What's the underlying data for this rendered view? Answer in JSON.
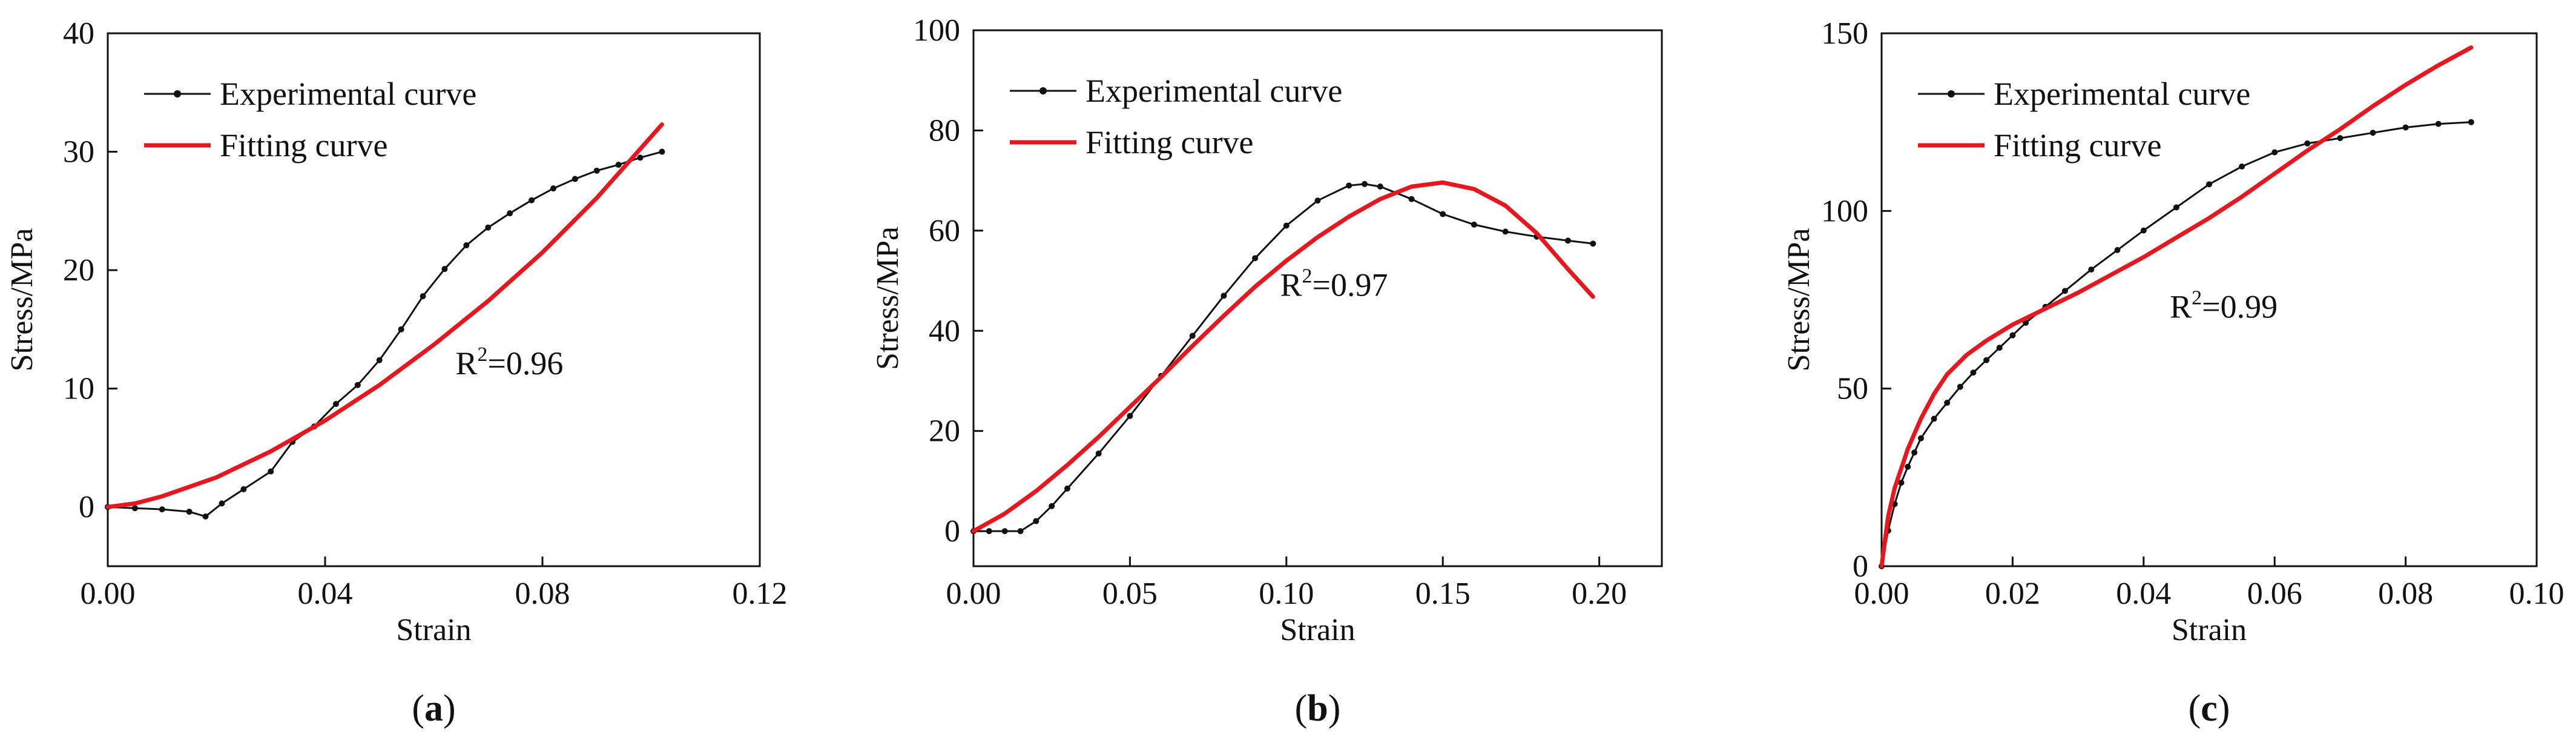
{
  "colors": {
    "experimental": "#111111",
    "fitting": "#e8161e",
    "axis": "#111111"
  },
  "chart_data": [
    {
      "id": "a",
      "type": "line",
      "panel_label": "(a)",
      "panel_letter": "a",
      "xlabel": "Strain",
      "ylabel": "Stress/MPa",
      "xlim": [
        0,
        0.12
      ],
      "ylim": [
        -5,
        40
      ],
      "xticks": [
        0,
        0.04,
        0.08,
        0.12
      ],
      "xtick_labels": [
        "0.00",
        "0.04",
        "0.08",
        "0.12"
      ],
      "yticks": [
        0,
        10,
        20,
        30,
        40
      ],
      "ytick_labels": [
        "0",
        "10",
        "20",
        "30",
        "40"
      ],
      "legend": {
        "experimental": "Experimental curve",
        "fitting": "Fitting curve",
        "placement": "top-left"
      },
      "annotation": {
        "base": "R",
        "sup": "2",
        "rest": "=0.96",
        "x": 0.064,
        "y": 11.2
      },
      "series": [
        {
          "name": "Experimental curve",
          "role": "experimental",
          "markers": true,
          "x": [
            0.0,
            0.005,
            0.01,
            0.015,
            0.018,
            0.021,
            0.025,
            0.03,
            0.034,
            0.038,
            0.042,
            0.046,
            0.05,
            0.054,
            0.058,
            0.062,
            0.066,
            0.07,
            0.074,
            0.078,
            0.082,
            0.086,
            0.09,
            0.094,
            0.098,
            0.102
          ],
          "y": [
            0.0,
            -0.1,
            -0.2,
            -0.4,
            -0.8,
            0.3,
            1.5,
            3.0,
            5.5,
            6.8,
            8.7,
            10.3,
            12.4,
            15.0,
            17.8,
            20.1,
            22.1,
            23.6,
            24.8,
            25.9,
            26.9,
            27.7,
            28.4,
            28.9,
            29.5,
            30.0
          ]
        },
        {
          "name": "Fitting curve",
          "role": "fitting",
          "markers": false,
          "x": [
            0.0,
            0.005,
            0.01,
            0.02,
            0.03,
            0.04,
            0.05,
            0.06,
            0.07,
            0.08,
            0.09,
            0.102
          ],
          "y": [
            0.0,
            0.3,
            0.9,
            2.5,
            4.7,
            7.3,
            10.3,
            13.7,
            17.4,
            21.5,
            26.1,
            32.3
          ]
        }
      ]
    },
    {
      "id": "b",
      "type": "line",
      "panel_label": "(b)",
      "panel_letter": "b",
      "xlabel": "Strain",
      "ylabel": "Stress/MPa",
      "xlim": [
        0,
        0.22
      ],
      "ylim": [
        -7,
        100
      ],
      "xticks": [
        0,
        0.05,
        0.1,
        0.15,
        0.2
      ],
      "xtick_labels": [
        "0.00",
        "0.05",
        "0.10",
        "0.15",
        "0.20"
      ],
      "yticks": [
        0,
        20,
        40,
        60,
        80,
        100
      ],
      "ytick_labels": [
        "0",
        "20",
        "40",
        "60",
        "80",
        "100"
      ],
      "legend": {
        "experimental": "Experimental curve",
        "fitting": "Fitting curve",
        "placement": "top-left"
      },
      "annotation": {
        "base": "R",
        "sup": "2",
        "rest": "=0.97",
        "x": 0.098,
        "y": 47
      },
      "series": [
        {
          "name": "Experimental curve",
          "role": "experimental",
          "markers": true,
          "x": [
            0.0,
            0.005,
            0.01,
            0.015,
            0.02,
            0.025,
            0.03,
            0.04,
            0.05,
            0.06,
            0.07,
            0.08,
            0.09,
            0.1,
            0.11,
            0.12,
            0.125,
            0.13,
            0.14,
            0.15,
            0.16,
            0.17,
            0.18,
            0.19,
            0.198
          ],
          "y": [
            0.0,
            0.0,
            0.0,
            0.0,
            2.0,
            5.0,
            8.5,
            15.5,
            23.0,
            31.0,
            39.0,
            47.0,
            54.5,
            61.0,
            66.0,
            69.0,
            69.3,
            68.8,
            66.3,
            63.3,
            61.2,
            59.8,
            58.8,
            58.0,
            57.4
          ]
        },
        {
          "name": "Fitting curve",
          "role": "fitting",
          "markers": false,
          "x": [
            0.0,
            0.01,
            0.02,
            0.03,
            0.04,
            0.05,
            0.06,
            0.07,
            0.08,
            0.09,
            0.1,
            0.11,
            0.12,
            0.13,
            0.14,
            0.15,
            0.16,
            0.17,
            0.18,
            0.19,
            0.198
          ],
          "y": [
            0.0,
            3.5,
            8.0,
            13.2,
            18.8,
            24.8,
            30.8,
            37.0,
            43.0,
            48.8,
            54.0,
            58.7,
            62.8,
            66.3,
            68.8,
            69.6,
            68.3,
            65.0,
            59.5,
            52.3,
            46.8
          ]
        }
      ]
    },
    {
      "id": "c",
      "type": "line",
      "panel_label": "(c)",
      "panel_letter": "c",
      "xlabel": "Strain",
      "ylabel": "Stress/MPa",
      "xlim": [
        0,
        0.1
      ],
      "ylim": [
        0,
        150
      ],
      "xticks": [
        0,
        0.02,
        0.04,
        0.06,
        0.08,
        0.1
      ],
      "xtick_labels": [
        "0.00",
        "0.02",
        "0.04",
        "0.06",
        "0.08",
        "0.10"
      ],
      "yticks": [
        0,
        50,
        100,
        150
      ],
      "ytick_labels": [
        "0",
        "50",
        "100",
        "150"
      ],
      "legend": {
        "experimental": "Experimental curve",
        "fitting": "Fitting curve",
        "placement": "top-left"
      },
      "annotation": {
        "base": "R",
        "sup": "2",
        "rest": "=0.99",
        "x": 0.044,
        "y": 70
      },
      "series": [
        {
          "name": "Experimental curve",
          "role": "experimental",
          "markers": true,
          "x": [
            0.0,
            0.001,
            0.002,
            0.003,
            0.004,
            0.005,
            0.006,
            0.008,
            0.01,
            0.012,
            0.014,
            0.016,
            0.018,
            0.02,
            0.022,
            0.025,
            0.028,
            0.032,
            0.036,
            0.04,
            0.045,
            0.05,
            0.055,
            0.06,
            0.065,
            0.07,
            0.075,
            0.08,
            0.085,
            0.09
          ],
          "y": [
            0.0,
            10.0,
            17.5,
            23.5,
            28.0,
            32.0,
            36.0,
            41.5,
            46.0,
            50.5,
            54.5,
            58.0,
            61.5,
            65.0,
            68.5,
            73.0,
            77.5,
            83.5,
            89.0,
            94.5,
            101.0,
            107.5,
            112.5,
            116.5,
            119.0,
            120.5,
            122.0,
            123.5,
            124.5,
            125.0
          ]
        },
        {
          "name": "Fitting curve",
          "role": "fitting",
          "markers": false,
          "x": [
            0.0,
            0.001,
            0.002,
            0.004,
            0.006,
            0.008,
            0.01,
            0.013,
            0.016,
            0.02,
            0.025,
            0.03,
            0.035,
            0.04,
            0.045,
            0.05,
            0.055,
            0.06,
            0.065,
            0.07,
            0.075,
            0.08,
            0.085,
            0.09
          ],
          "y": [
            0.0,
            14.0,
            22.0,
            33.0,
            41.5,
            48.5,
            54.0,
            59.5,
            63.5,
            68.0,
            72.5,
            77.0,
            82.0,
            87.0,
            92.5,
            98.0,
            104.0,
            110.5,
            117.0,
            123.0,
            129.5,
            135.5,
            141.0,
            146.0
          ]
        }
      ]
    }
  ]
}
